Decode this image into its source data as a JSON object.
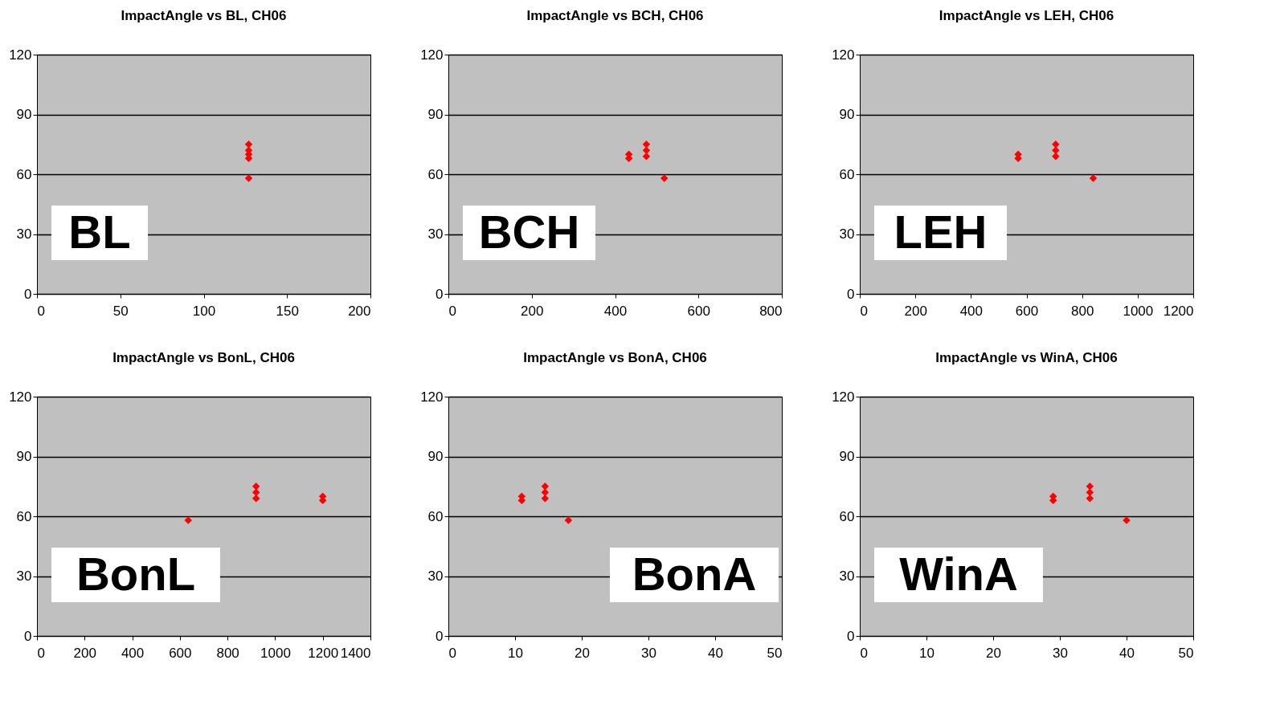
{
  "chart_data": [
    {
      "type": "scatter",
      "title": "ImpactAngle vs BL, CH06",
      "series": [
        {
          "color": "#ff0000",
          "x": [
            127,
            127,
            127,
            127,
            127
          ],
          "values": [
            68,
            70,
            72,
            75,
            58
          ]
        }
      ],
      "xlim": [
        0,
        200
      ],
      "xticks": [
        0,
        50,
        100,
        150,
        200
      ],
      "ylim": [
        0,
        120
      ],
      "yticks": [
        0,
        30,
        60,
        90,
        120
      ],
      "grid": "y",
      "marker": "diamond",
      "annotations": [
        "BL"
      ]
    },
    {
      "type": "scatter",
      "title": "ImpactAngle vs BCH, CH06",
      "series": [
        {
          "color": "#ff0000",
          "x": [
            433,
            433,
            475,
            475,
            475,
            518
          ],
          "values": [
            68,
            70,
            69,
            72,
            75,
            58
          ]
        }
      ],
      "xlim": [
        0,
        800
      ],
      "xticks": [
        0,
        200,
        400,
        600,
        800
      ],
      "ylim": [
        0,
        120
      ],
      "yticks": [
        0,
        30,
        60,
        90,
        120
      ],
      "grid": "y",
      "marker": "diamond",
      "annotations": [
        "BCH"
      ]
    },
    {
      "type": "scatter",
      "title": "ImpactAngle vs LEH, CH06",
      "series": [
        {
          "color": "#ff0000",
          "x": [
            570,
            570,
            705,
            705,
            705,
            840
          ],
          "values": [
            68,
            70,
            69,
            72,
            75,
            58
          ]
        }
      ],
      "xlim": [
        0,
        1200
      ],
      "xticks": [
        0,
        200,
        400,
        600,
        800,
        1000,
        1200
      ],
      "ylim": [
        0,
        120
      ],
      "yticks": [
        0,
        30,
        60,
        90,
        120
      ],
      "grid": "y",
      "marker": "diamond",
      "annotations": [
        "LEH"
      ]
    },
    {
      "type": "scatter",
      "title": "ImpactAngle vs BonL, CH06",
      "series": [
        {
          "color": "#ff0000",
          "x": [
            1200,
            1200,
            920,
            920,
            920,
            635
          ],
          "values": [
            68,
            70,
            69,
            72,
            75,
            58
          ]
        }
      ],
      "xlim": [
        0,
        1400
      ],
      "xticks": [
        0,
        200,
        400,
        600,
        800,
        1000,
        1200,
        1400
      ],
      "ylim": [
        0,
        120
      ],
      "yticks": [
        0,
        30,
        60,
        90,
        120
      ],
      "grid": "y",
      "marker": "diamond",
      "annotations": [
        "BonL"
      ]
    },
    {
      "type": "scatter",
      "title": "ImpactAngle vs BonA, CH06",
      "series": [
        {
          "color": "#ff0000",
          "x": [
            11,
            11,
            14.5,
            14.5,
            14.5,
            18
          ],
          "values": [
            68,
            70,
            69,
            72,
            75,
            58
          ]
        }
      ],
      "xlim": [
        0,
        50
      ],
      "xticks": [
        0,
        10,
        20,
        30,
        40,
        50
      ],
      "ylim": [
        0,
        120
      ],
      "yticks": [
        0,
        30,
        60,
        90,
        120
      ],
      "grid": "y",
      "marker": "diamond",
      "annotations": [
        "BonA"
      ]
    },
    {
      "type": "scatter",
      "title": "ImpactAngle vs WinA, CH06",
      "series": [
        {
          "color": "#ff0000",
          "x": [
            29,
            29,
            34.5,
            34.5,
            34.5,
            40
          ],
          "values": [
            68,
            70,
            69,
            72,
            75,
            58
          ]
        }
      ],
      "xlim": [
        0,
        50
      ],
      "xticks": [
        0,
        10,
        20,
        30,
        40,
        50
      ],
      "ylim": [
        0,
        120
      ],
      "yticks": [
        0,
        30,
        60,
        90,
        120
      ],
      "grid": "y",
      "marker": "diamond",
      "annotations": [
        "WinA"
      ]
    }
  ]
}
